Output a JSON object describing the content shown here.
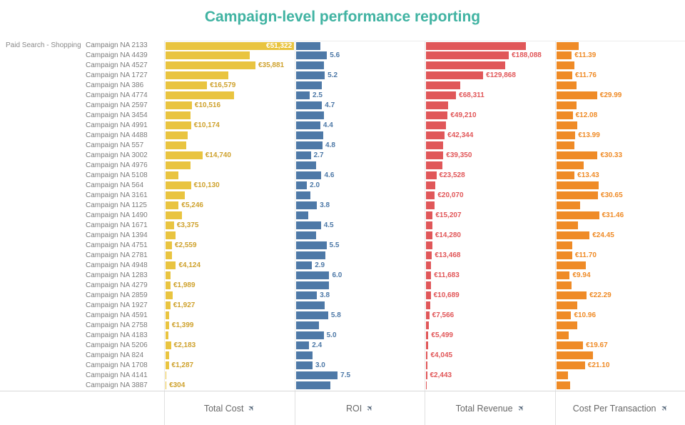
{
  "title": "Campaign-level performance reporting",
  "colors": {
    "title": "#40b3a2",
    "row_label_text": "#7d7d7d",
    "pane_border": "#e8e8e8",
    "cost_bar": "#e9c440",
    "roi_bar": "#4e79a7",
    "revenue_bar": "#e05759",
    "cpt_bar": "#ef8b27",
    "cost_label": "#cfa22e",
    "roi_label": "#4e79a7",
    "revenue_label": "#e15759",
    "cpt_label": "#ef8b27"
  },
  "icons": {
    "sort": "✈"
  },
  "chart_data": {
    "type": "bar",
    "orientation": "horizontal",
    "row_group_label": "Paid Search - Shopping",
    "categories": [
      "Campaign NA 2133",
      "Campaign NA 4439",
      "Campaign NA 4527",
      "Campaign NA 1727",
      "Campaign NA 386",
      "Campaign NA 4774",
      "Campaign NA 2597",
      "Campaign NA 3454",
      "Campaign NA 4991",
      "Campaign NA 4488",
      "Campaign NA 557",
      "Campaign NA 3002",
      "Campaign NA 4976",
      "Campaign NA 5108",
      "Campaign NA 564",
      "Campaign NA 3161",
      "Campaign NA 1125",
      "Campaign NA 1490",
      "Campaign NA 1671",
      "Campaign NA 1394",
      "Campaign NA 4751",
      "Campaign NA 2781",
      "Campaign NA 4948",
      "Campaign NA 1283",
      "Campaign NA 4279",
      "Campaign NA 2859",
      "Campaign NA 1927",
      "Campaign NA 4591",
      "Campaign NA 2758",
      "Campaign NA 4183",
      "Campaign NA 5206",
      "Campaign NA 824",
      "Campaign NA 1708",
      "Campaign NA 4141",
      "Campaign NA 3887"
    ],
    "series": [
      {
        "name": "Total Cost",
        "color": "#e9c440",
        "label_color": "#cfa22e",
        "axis_max": 51700,
        "inside_label_rows": [
          0
        ],
        "values": [
          51322,
          33600,
          35881,
          24975,
          16579,
          27324,
          10516,
          9842,
          10174,
          8700,
          8200,
          14740,
          9900,
          5115,
          10130,
          7800,
          5246,
          6600,
          3375,
          3900,
          2559,
          2540,
          4124,
          1947,
          1989,
          2813,
          1927,
          1304,
          1399,
          1100,
          2183,
          1348,
          1287,
          326,
          304
        ],
        "labels": [
          "€51,322",
          null,
          "€35,881",
          null,
          "€16,579",
          null,
          "€10,516",
          null,
          "€10,174",
          null,
          null,
          "€14,740",
          null,
          null,
          "€10,130",
          null,
          "€5,246",
          null,
          "€3,375",
          null,
          "€2,559",
          null,
          "€4,124",
          null,
          "€1,989",
          null,
          "€1,927",
          null,
          "€1,399",
          null,
          "€2,183",
          null,
          "€1,287",
          null,
          "€304"
        ]
      },
      {
        "name": "ROI",
        "color": "#4e79a7",
        "label_color": "#4e79a7",
        "axis_max": 23.2,
        "inside_label_rows": [],
        "values": [
          4.4,
          5.6,
          5.0,
          5.2,
          4.7,
          2.5,
          4.7,
          5.0,
          4.4,
          4.9,
          4.8,
          2.7,
          3.7,
          4.6,
          2.0,
          2.6,
          3.8,
          2.3,
          4.5,
          3.7,
          5.5,
          5.3,
          2.9,
          6.0,
          5.9,
          3.8,
          5.2,
          5.8,
          4.2,
          5.0,
          2.4,
          3.0,
          3.0,
          7.5,
          6.2
        ],
        "labels": [
          null,
          "5.6",
          null,
          "5.2",
          null,
          "2.5",
          "4.7",
          null,
          "4.4",
          null,
          "4.8",
          "2.7",
          null,
          "4.6",
          "2.0",
          null,
          "3.8",
          null,
          "4.5",
          null,
          "5.5",
          null,
          "2.9",
          "6.0",
          null,
          "3.8",
          null,
          "5.8",
          null,
          "5.0",
          "2.4",
          null,
          "3.0",
          "7.5",
          null
        ]
      },
      {
        "name": "Total Revenue",
        "color": "#e05759",
        "label_color": "#e15759",
        "axis_max": 294000,
        "inside_label_rows": [],
        "values": [
          226500,
          188088,
          180500,
          129868,
          77500,
          68311,
          49425,
          49210,
          44766,
          42344,
          39400,
          39350,
          37100,
          23528,
          20260,
          20070,
          19900,
          15207,
          15190,
          14280,
          14075,
          13468,
          11960,
          11683,
          11735,
          10689,
          10020,
          7566,
          5900,
          5499,
          5240,
          4045,
          3861,
          2443,
          1885
        ],
        "labels": [
          null,
          "€188,088",
          null,
          "€129,868",
          null,
          "€68,311",
          null,
          "€49,210",
          null,
          "€42,344",
          null,
          "€39,350",
          null,
          "€23,528",
          null,
          "€20,070",
          null,
          "€15,207",
          null,
          "€14,280",
          null,
          "€13,468",
          null,
          "€11,683",
          null,
          "€10,689",
          null,
          "€7,566",
          null,
          "€5,499",
          null,
          "€4,045",
          null,
          "€2,443",
          null
        ]
      },
      {
        "name": "Cost Per Transaction",
        "color": "#ef8b27",
        "label_color": "#ef8b27",
        "axis_max": 95,
        "inside_label_rows": [],
        "values": [
          16.4,
          11.39,
          13.6,
          11.76,
          14.7,
          29.99,
          14.7,
          12.08,
          15.2,
          13.99,
          13.6,
          30.33,
          20.4,
          13.43,
          30.9,
          30.65,
          17.3,
          31.46,
          16.2,
          24.45,
          12.0,
          11.7,
          21.5,
          9.94,
          11.5,
          22.29,
          15.2,
          10.96,
          15.2,
          9.4,
          19.67,
          26.7,
          21.1,
          8.4,
          10.0
        ],
        "labels": [
          null,
          "€11.39",
          null,
          "€11.76",
          null,
          "€29.99",
          null,
          "€12.08",
          null,
          "€13.99",
          null,
          "€30.33",
          null,
          "€13.43",
          null,
          "€30.65",
          null,
          "€31.46",
          null,
          "€24.45",
          null,
          "€11.70",
          null,
          "€9.94",
          null,
          "€22.29",
          null,
          "€10.96",
          null,
          null,
          "€19.67",
          null,
          "€21.10",
          null,
          null
        ]
      }
    ]
  }
}
